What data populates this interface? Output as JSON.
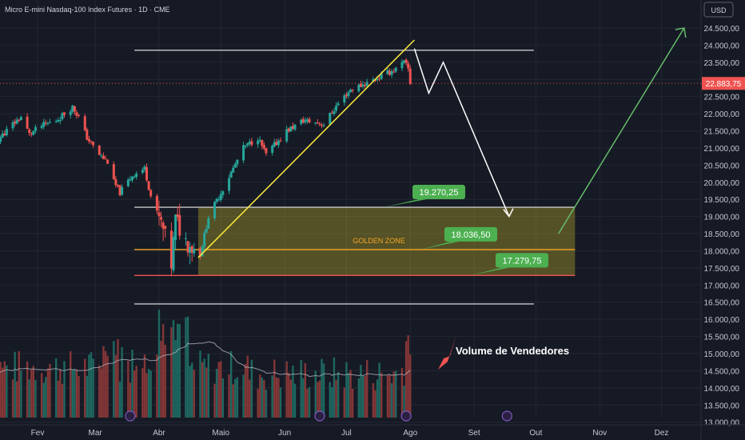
{
  "header": {
    "title": "Micro E-mini Nasdaq-100 Index Futures · 1D · CME",
    "currency": "USD"
  },
  "chart_data": {
    "type": "candlestick",
    "y_ticks": [
      13000,
      13500,
      14000,
      14500,
      15000,
      15500,
      16000,
      16500,
      17000,
      17500,
      18000,
      18500,
      19000,
      19500,
      20000,
      20500,
      21000,
      21500,
      22000,
      22500,
      23000,
      23500,
      24000,
      24500
    ],
    "y_tick_labels": [
      "13.000,00",
      "13.500,00",
      "14.000,00",
      "14.500,00",
      "15.000,00",
      "15.500,00",
      "16.000,00",
      "16.500,00",
      "17.000,00",
      "17.500,00",
      "18.000,00",
      "18.500,00",
      "19.000,00",
      "19.500,00",
      "20.000,00",
      "20.500,00",
      "21.000,00",
      "21.500,00",
      "22.000,00",
      "22.500,00",
      "23.000,00",
      "23.500,00",
      "24.000,00",
      "24.500,00"
    ],
    "x_labels": [
      {
        "label": "Fev",
        "date": "2025-02-01"
      },
      {
        "label": "Mar",
        "date": "2025-03-01"
      },
      {
        "label": "Abr",
        "date": "2025-04-01"
      },
      {
        "label": "Maio",
        "date": "2025-05-01"
      },
      {
        "label": "Jun",
        "date": "2025-06-01"
      },
      {
        "label": "Jul",
        "date": "2025-07-01"
      },
      {
        "label": "Ago",
        "date": "2025-08-01"
      },
      {
        "label": "Set",
        "date": "2025-09-01"
      },
      {
        "label": "Out",
        "date": "2025-10-01"
      },
      {
        "label": "Nov",
        "date": "2025-11-01"
      },
      {
        "label": "Dez",
        "date": "2025-12-01"
      }
    ],
    "close_path": [
      [
        "2025-01-06",
        21500
      ],
      [
        "2025-01-13",
        21250
      ],
      [
        "2025-01-20",
        21700
      ],
      [
        "2025-01-24",
        21900
      ],
      [
        "2025-01-28",
        21400
      ],
      [
        "2025-02-03",
        21650
      ],
      [
        "2025-02-10",
        21800
      ],
      [
        "2025-02-18",
        22200
      ],
      [
        "2025-02-21",
        21900
      ],
      [
        "2025-02-25",
        21300
      ],
      [
        "2025-03-03",
        20800
      ],
      [
        "2025-03-07",
        20600
      ],
      [
        "2025-03-10",
        20000
      ],
      [
        "2025-03-13",
        19700
      ],
      [
        "2025-03-19",
        20200
      ],
      [
        "2025-03-25",
        20400
      ],
      [
        "2025-03-28",
        19600
      ],
      [
        "2025-04-03",
        18600
      ],
      [
        "2025-04-07",
        17600
      ],
      [
        "2025-04-09",
        18900
      ],
      [
        "2025-04-14",
        18300
      ],
      [
        "2025-04-21",
        17900
      ],
      [
        "2025-04-25",
        19000
      ],
      [
        "2025-05-02",
        19800
      ],
      [
        "2025-05-12",
        21000
      ],
      [
        "2025-05-19",
        21300
      ],
      [
        "2025-05-23",
        20800
      ],
      [
        "2025-06-02",
        21500
      ],
      [
        "2025-06-10",
        21800
      ],
      [
        "2025-06-20",
        21700
      ],
      [
        "2025-06-27",
        22300
      ],
      [
        "2025-07-03",
        22700
      ],
      [
        "2025-07-11",
        22900
      ],
      [
        "2025-07-18",
        23100
      ],
      [
        "2025-07-25",
        23300
      ],
      [
        "2025-07-29",
        23500
      ],
      [
        "2025-07-31",
        23300
      ],
      [
        "2025-08-01",
        22884
      ]
    ],
    "last_price": 22883.75,
    "last_price_label": "22.883,75",
    "levels": [
      {
        "price": 23850,
        "color": "#c8c8c8"
      },
      {
        "price": 19270.25,
        "label": "19.270,25",
        "color": "#c8c8c8"
      },
      {
        "price": 18036.5,
        "label": "18.036,50",
        "color": "#f5a623"
      },
      {
        "price": 17279.75,
        "label": "17.279,75",
        "color": "#ef5350"
      },
      {
        "price": 16450,
        "color": "#c8c8c8"
      }
    ],
    "zone": {
      "label": "GOLDEN ZONE",
      "top": 19270.25,
      "bottom": 17279.75,
      "start": "2025-04-20",
      "end": "2025-10-20"
    },
    "trendline": {
      "from": [
        "2025-04-20",
        17800
      ],
      "to": [
        "2025-08-03",
        24150
      ],
      "color": "#ffeb3b"
    },
    "projection": [
      [
        "2025-08-03",
        23900
      ],
      [
        "2025-08-10",
        22600
      ],
      [
        "2025-08-17",
        23500
      ],
      [
        "2025-09-18",
        19000
      ]
    ],
    "bull_arrow": [
      [
        "2025-10-12",
        18500
      ],
      [
        "2025-12-12",
        24500
      ]
    ],
    "annotation": "Volume de Vendedores",
    "colors": {
      "up": "#26a69a",
      "down": "#ef5350",
      "bg": "#161a25",
      "grid": "#232734"
    }
  }
}
